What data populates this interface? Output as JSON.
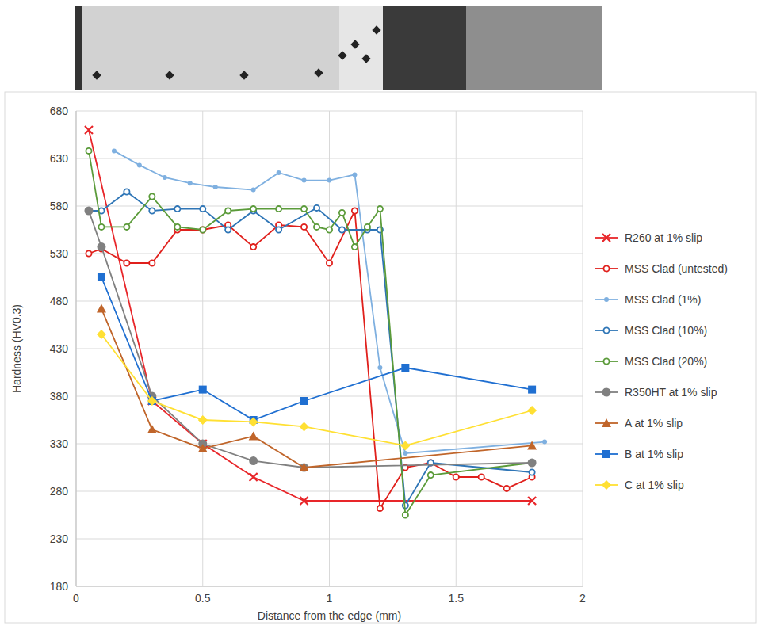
{
  "chart_data": {
    "type": "line",
    "xlabel": "Distance from the edge (mm)",
    "ylabel": "Hardness (HV0.3)",
    "xlim": [
      0,
      2
    ],
    "xticks": [
      0,
      0.5,
      1,
      1.5,
      2
    ],
    "ylim": [
      180,
      680
    ],
    "yticks": [
      180,
      230,
      280,
      330,
      380,
      430,
      480,
      530,
      580,
      630,
      680
    ],
    "grid": true,
    "legend": "right",
    "series": [
      {
        "name": "R260 at 1% slip",
        "color": "#e8262a",
        "marker": "x",
        "line_style": "solid",
        "x": [
          0.05,
          0.3,
          0.5,
          0.7,
          0.9,
          1.8
        ],
        "values": [
          660,
          375,
          330,
          295,
          270,
          270
        ]
      },
      {
        "name": "MSS Clad (untested)",
        "color": "#e0201c",
        "marker": "circle-open",
        "line_style": "solid",
        "x": [
          0.05,
          0.1,
          0.2,
          0.3,
          0.4,
          0.5,
          0.6,
          0.7,
          0.8,
          0.9,
          1.0,
          1.1,
          1.2,
          1.3,
          1.4,
          1.5,
          1.6,
          1.7,
          1.8
        ],
        "values": [
          530,
          535,
          520,
          520,
          555,
          555,
          560,
          537,
          560,
          558,
          520,
          575,
          262,
          305,
          310,
          295,
          295,
          283,
          295
        ]
      },
      {
        "name": "MSS Clad (1%)",
        "color": "#7fb0e0",
        "marker": "circle",
        "line_style": "solid",
        "x": [
          0.15,
          0.25,
          0.35,
          0.45,
          0.55,
          0.7,
          0.8,
          0.9,
          1.0,
          1.1,
          1.2,
          1.3,
          1.85
        ],
        "values": [
          638,
          623,
          610,
          604,
          600,
          597,
          615,
          607,
          607,
          613,
          410,
          320,
          332
        ]
      },
      {
        "name": "MSS Clad (10%)",
        "color": "#2e75b6",
        "marker": "circle-open",
        "line_style": "solid",
        "x": [
          0.05,
          0.1,
          0.2,
          0.3,
          0.4,
          0.5,
          0.6,
          0.7,
          0.8,
          0.95,
          1.05,
          1.15,
          1.2,
          1.3,
          1.4,
          1.8
        ],
        "values": [
          575,
          575,
          595,
          575,
          577,
          577,
          555,
          575,
          555,
          578,
          555,
          555,
          555,
          265,
          310,
          300
        ]
      },
      {
        "name": "MSS Clad (20%)",
        "color": "#5b9b3a",
        "marker": "circle-open",
        "line_style": "solid",
        "x": [
          0.05,
          0.1,
          0.2,
          0.3,
          0.4,
          0.5,
          0.6,
          0.7,
          0.8,
          0.9,
          0.95,
          1.0,
          1.05,
          1.1,
          1.15,
          1.2,
          1.3,
          1.4,
          1.8
        ],
        "values": [
          638,
          558,
          558,
          590,
          558,
          555,
          575,
          577,
          577,
          577,
          558,
          555,
          573,
          537,
          558,
          577,
          255,
          297,
          310
        ]
      },
      {
        "name": "R350HT at 1% slip",
        "color": "#808080",
        "marker": "circle",
        "line_style": "solid",
        "x": [
          0.05,
          0.1,
          0.3,
          0.5,
          0.7,
          0.9,
          1.8
        ],
        "values": [
          575,
          537,
          380,
          330,
          312,
          305,
          310
        ]
      },
      {
        "name": "A at 1% slip",
        "color": "#c0652a",
        "marker": "triangle",
        "line_style": "solid",
        "x": [
          0.1,
          0.3,
          0.5,
          0.7,
          0.9,
          1.8
        ],
        "values": [
          472,
          345,
          325,
          338,
          305,
          328
        ]
      },
      {
        "name": "B at 1% slip",
        "color": "#1f6fd1",
        "marker": "square",
        "line_style": "solid",
        "x": [
          0.1,
          0.3,
          0.5,
          0.7,
          0.9,
          1.3,
          1.8
        ],
        "values": [
          505,
          375,
          387,
          355,
          375,
          410,
          387
        ]
      },
      {
        "name": "C at 1% slip",
        "color": "#ffe033",
        "marker": "diamond",
        "line_style": "solid",
        "x": [
          0.1,
          0.3,
          0.5,
          0.7,
          0.9,
          1.3,
          1.8
        ],
        "values": [
          445,
          375,
          355,
          353,
          348,
          328,
          365
        ]
      }
    ]
  }
}
